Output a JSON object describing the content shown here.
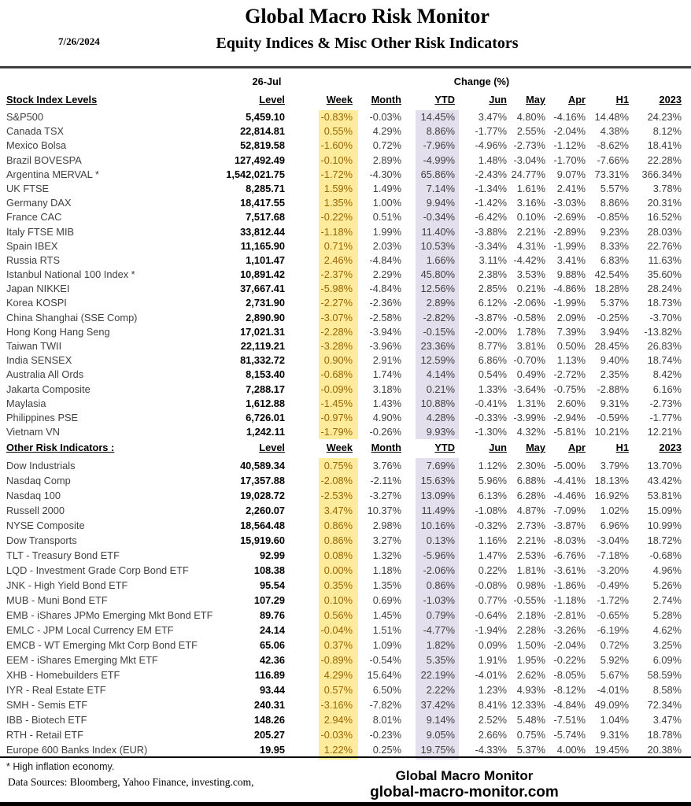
{
  "header": {
    "date": "7/26/2024",
    "title": "Global Macro Risk Monitor",
    "subtitle": "Equity Indices & Misc Other Risk Indicators",
    "date_col_header": "26-Jul",
    "change_header": "Change (%)"
  },
  "columns": [
    "Level",
    "Week",
    "Month",
    "YTD",
    "Jun",
    "May",
    "Apr",
    "H1",
    "2023"
  ],
  "sections": [
    {
      "label": "Stock Index Levels",
      "rows": [
        {
          "name": "S&P500",
          "values": [
            "5,459.10",
            "-0.83%",
            "-0.03%",
            "14.45%",
            "3.47%",
            "4.80%",
            "-4.16%",
            "14.48%",
            "24.23%"
          ]
        },
        {
          "name": "Canada TSX",
          "values": [
            "22,814.81",
            "0.55%",
            "4.29%",
            "8.86%",
            "-1.77%",
            "2.55%",
            "-2.04%",
            "4.38%",
            "8.12%"
          ]
        },
        {
          "name": "Mexico Bolsa",
          "values": [
            "52,819.58",
            "-1.60%",
            "0.72%",
            "-7.96%",
            "-4.96%",
            "-2.73%",
            "-1.12%",
            "-8.62%",
            "18.41%"
          ]
        },
        {
          "name": "Brazil BOVESPA",
          "values": [
            "127,492.49",
            "-0.10%",
            "2.89%",
            "-4.99%",
            "1.48%",
            "-3.04%",
            "-1.70%",
            "-7.66%",
            "22.28%"
          ]
        },
        {
          "name": "Argentina MERVAL *",
          "values": [
            "1,542,021.75",
            "-1.72%",
            "-4.30%",
            "65.86%",
            "-2.43%",
            "24.77%",
            "9.07%",
            "73.31%",
            "366.34%"
          ]
        },
        {
          "name": "UK FTSE",
          "values": [
            "8,285.71",
            "1.59%",
            "1.49%",
            "7.14%",
            "-1.34%",
            "1.61%",
            "2.41%",
            "5.57%",
            "3.78%"
          ]
        },
        {
          "name": "Germany DAX",
          "values": [
            "18,417.55",
            "1.35%",
            "1.00%",
            "9.94%",
            "-1.42%",
            "3.16%",
            "-3.03%",
            "8.86%",
            "20.31%"
          ]
        },
        {
          "name": "France CAC",
          "values": [
            "7,517.68",
            "-0.22%",
            "0.51%",
            "-0.34%",
            "-6.42%",
            "0.10%",
            "-2.69%",
            "-0.85%",
            "16.52%"
          ]
        },
        {
          "name": "Italy FTSE MIB",
          "values": [
            "33,812.44",
            "-1.18%",
            "1.99%",
            "11.40%",
            "-3.88%",
            "2.21%",
            "-2.89%",
            "9.23%",
            "28.03%"
          ]
        },
        {
          "name": "Spain IBEX",
          "values": [
            "11,165.90",
            "0.71%",
            "2.03%",
            "10.53%",
            "-3.34%",
            "4.31%",
            "-1.99%",
            "8.33%",
            "22.76%"
          ]
        },
        {
          "name": "Russia RTS",
          "values": [
            "1,101.47",
            "2.46%",
            "-4.84%",
            "1.66%",
            "3.11%",
            "-4.42%",
            "3.41%",
            "6.83%",
            "11.63%"
          ]
        },
        {
          "name": "Istanbul National 100 Index *",
          "values": [
            "10,891.42",
            "-2.37%",
            "2.29%",
            "45.80%",
            "2.38%",
            "3.53%",
            "9.88%",
            "42.54%",
            "35.60%"
          ]
        },
        {
          "name": "Japan NIKKEI",
          "values": [
            "37,667.41",
            "-5.98%",
            "-4.84%",
            "12.56%",
            "2.85%",
            "0.21%",
            "-4.86%",
            "18.28%",
            "28.24%"
          ]
        },
        {
          "name": "Korea KOSPI",
          "values": [
            "2,731.90",
            "-2.27%",
            "-2.36%",
            "2.89%",
            "6.12%",
            "-2.06%",
            "-1.99%",
            "5.37%",
            "18.73%"
          ]
        },
        {
          "name": "China Shanghai (SSE Comp)",
          "values": [
            "2,890.90",
            "-3.07%",
            "-2.58%",
            "-2.82%",
            "-3.87%",
            "-0.58%",
            "2.09%",
            "-0.25%",
            "-3.70%"
          ]
        },
        {
          "name": "Hong Kong Hang Seng",
          "values": [
            "17,021.31",
            "-2.28%",
            "-3.94%",
            "-0.15%",
            "-2.00%",
            "1.78%",
            "7.39%",
            "3.94%",
            "-13.82%"
          ]
        },
        {
          "name": "Taiwan  TWII",
          "values": [
            "22,119.21",
            "-3.28%",
            "-3.96%",
            "23.36%",
            "8.77%",
            "3.81%",
            "0.50%",
            "28.45%",
            "26.83%"
          ]
        },
        {
          "name": "India SENSEX",
          "values": [
            "81,332.72",
            "0.90%",
            "2.91%",
            "12.59%",
            "6.86%",
            "-0.70%",
            "1.13%",
            "9.40%",
            "18.74%"
          ]
        },
        {
          "name": "Australia All Ords",
          "values": [
            "8,153.40",
            "-0.68%",
            "1.74%",
            "4.14%",
            "0.54%",
            "0.49%",
            "-2.72%",
            "2.35%",
            "8.42%"
          ]
        },
        {
          "name": "Jakarta Composite",
          "values": [
            "7,288.17",
            "-0.09%",
            "3.18%",
            "0.21%",
            "1.33%",
            "-3.64%",
            "-0.75%",
            "-2.88%",
            "6.16%"
          ]
        },
        {
          "name": "Maylasia",
          "values": [
            "1,612.88",
            "-1.45%",
            "1.43%",
            "10.88%",
            "-0.41%",
            "1.31%",
            "2.60%",
            "9.31%",
            "-2.73%"
          ]
        },
        {
          "name": "Philippines PSE",
          "values": [
            "6,726.01",
            "-0.97%",
            "4.90%",
            "4.28%",
            "-0.33%",
            "-3.99%",
            "-2.94%",
            "-0.59%",
            "-1.77%"
          ]
        },
        {
          "name": "Vietnam VN",
          "values": [
            "1,242.11",
            "-1.79%",
            "-0.26%",
            "9.93%",
            "-1.30%",
            "4.32%",
            "-5.81%",
            "10.21%",
            "12.21%"
          ]
        }
      ]
    },
    {
      "label": "Other Risk Indicators :",
      "rows": [
        {
          "name": "Dow Industrials",
          "values": [
            "40,589.34",
            "0.75%",
            "3.76%",
            "7.69%",
            "1.12%",
            "2.30%",
            "-5.00%",
            "3.79%",
            "13.70%"
          ]
        },
        {
          "name": "Nasdaq Comp",
          "values": [
            "17,357.88",
            "-2.08%",
            "-2.11%",
            "15.63%",
            "5.96%",
            "6.88%",
            "-4.41%",
            "18.13%",
            "43.42%"
          ]
        },
        {
          "name": "Nasdaq 100",
          "values": [
            "19,028.72",
            "-2.53%",
            "-3.27%",
            "13.09%",
            "6.13%",
            "6.28%",
            "-4.46%",
            "16.92%",
            "53.81%"
          ]
        },
        {
          "name": "Russell 2000",
          "values": [
            "2,260.07",
            "3.47%",
            "10.37%",
            "11.49%",
            "-1.08%",
            "4.87%",
            "-7.09%",
            "1.02%",
            "15.09%"
          ]
        },
        {
          "name": "NYSE Composite",
          "values": [
            "18,564.48",
            "0.86%",
            "2.98%",
            "10.16%",
            "-0.32%",
            "2.73%",
            "-3.87%",
            "6.96%",
            "10.99%"
          ]
        },
        {
          "name": "Dow Transports",
          "values": [
            "15,919.60",
            "0.86%",
            "3.27%",
            "0.13%",
            "1.16%",
            "2.21%",
            "-8.03%",
            "-3.04%",
            "18.72%"
          ]
        },
        {
          "name": "TLT - Treasury Bond ETF",
          "values": [
            "92.99",
            "0.08%",
            "1.32%",
            "-5.96%",
            "1.47%",
            "2.53%",
            "-6.76%",
            "-7.18%",
            "-0.68%"
          ]
        },
        {
          "name": "LQD - Investment Grade Corp Bond ETF",
          "values": [
            "108.38",
            "0.00%",
            "1.18%",
            "-2.06%",
            "0.22%",
            "1.81%",
            "-3.61%",
            "-3.20%",
            "4.96%"
          ]
        },
        {
          "name": "JNK - High Yield Bond ETF",
          "values": [
            "95.54",
            "0.35%",
            "1.35%",
            "0.86%",
            "-0.08%",
            "0.98%",
            "-1.86%",
            "-0.49%",
            "5.26%"
          ]
        },
        {
          "name": "MUB - Muni Bond ETF",
          "values": [
            "107.29",
            "0.10%",
            "0.69%",
            "-1.03%",
            "0.77%",
            "-0.55%",
            "-1.18%",
            "-1.72%",
            "2.74%"
          ]
        },
        {
          "name": "EMB - iShares JPMo Emerging Mkt Bond ETF",
          "values": [
            "89.76",
            "0.56%",
            "1.45%",
            "0.79%",
            "-0.64%",
            "2.18%",
            "-2.81%",
            "-0.65%",
            "5.28%"
          ]
        },
        {
          "name": "EMLC - JPM Local Currency EM ETF",
          "values": [
            "24.14",
            "-0.04%",
            "1.51%",
            "-4.77%",
            "-1.94%",
            "2.28%",
            "-3.26%",
            "-6.19%",
            "4.62%"
          ]
        },
        {
          "name": "EMCB - WT Emerging Mkt Corp Bond ETF",
          "values": [
            "65.06",
            "0.37%",
            "1.09%",
            "1.82%",
            "0.09%",
            "1.50%",
            "-2.04%",
            "0.72%",
            "3.25%"
          ]
        },
        {
          "name": "EEM - iShares Emerging Mkt ETF",
          "values": [
            "42.36",
            "-0.89%",
            "-0.54%",
            "5.35%",
            "1.91%",
            "1.95%",
            "-0.22%",
            "5.92%",
            "6.09%"
          ]
        },
        {
          "name": "XHB - Homebuilders ETF",
          "values": [
            "116.89",
            "4.29%",
            "15.64%",
            "22.19%",
            "-4.01%",
            "2.62%",
            "-8.05%",
            "5.67%",
            "58.59%"
          ]
        },
        {
          "name": "IYR - Real Estate ETF",
          "values": [
            "93.44",
            "0.57%",
            "6.50%",
            "2.22%",
            "1.23%",
            "4.93%",
            "-8.12%",
            "-4.01%",
            "8.58%"
          ]
        },
        {
          "name": "SMH - Semis ETF",
          "values": [
            "240.31",
            "-3.16%",
            "-7.82%",
            "37.42%",
            "8.41%",
            "12.33%",
            "-4.84%",
            "49.09%",
            "72.34%"
          ]
        },
        {
          "name": "IBB - Biotech ETF",
          "values": [
            "148.26",
            "2.94%",
            "8.01%",
            "9.14%",
            "2.52%",
            "5.48%",
            "-7.51%",
            "1.04%",
            "3.47%"
          ]
        },
        {
          "name": "RTH - Retail ETF",
          "values": [
            "205.27",
            "-0.03%",
            "-0.23%",
            "9.05%",
            "2.66%",
            "0.75%",
            "-5.74%",
            "9.31%",
            "18.78%"
          ]
        },
        {
          "name": "Europe 600 Banks Index (EUR)",
          "values": [
            "19.95",
            "1.22%",
            "0.25%",
            "19.75%",
            "-4.33%",
            "5.37%",
            "4.00%",
            "19.45%",
            "20.38%"
          ]
        }
      ]
    }
  ],
  "footer": {
    "footnote": "* High inflation economy.",
    "sources": "Data Sources:  Bloomberg,  Yahoo Finance, investing.com,",
    "brand_name": "Global Macro Monitor",
    "brand_site": "global-macro-monitor.com"
  },
  "colors": {
    "week_highlight_bg": "#FFEB9C",
    "week_highlight_text": "#9C6500",
    "ytd_highlight_bg": "#E4DFEC",
    "body_text": "#404040",
    "rule_color": "#000000"
  }
}
